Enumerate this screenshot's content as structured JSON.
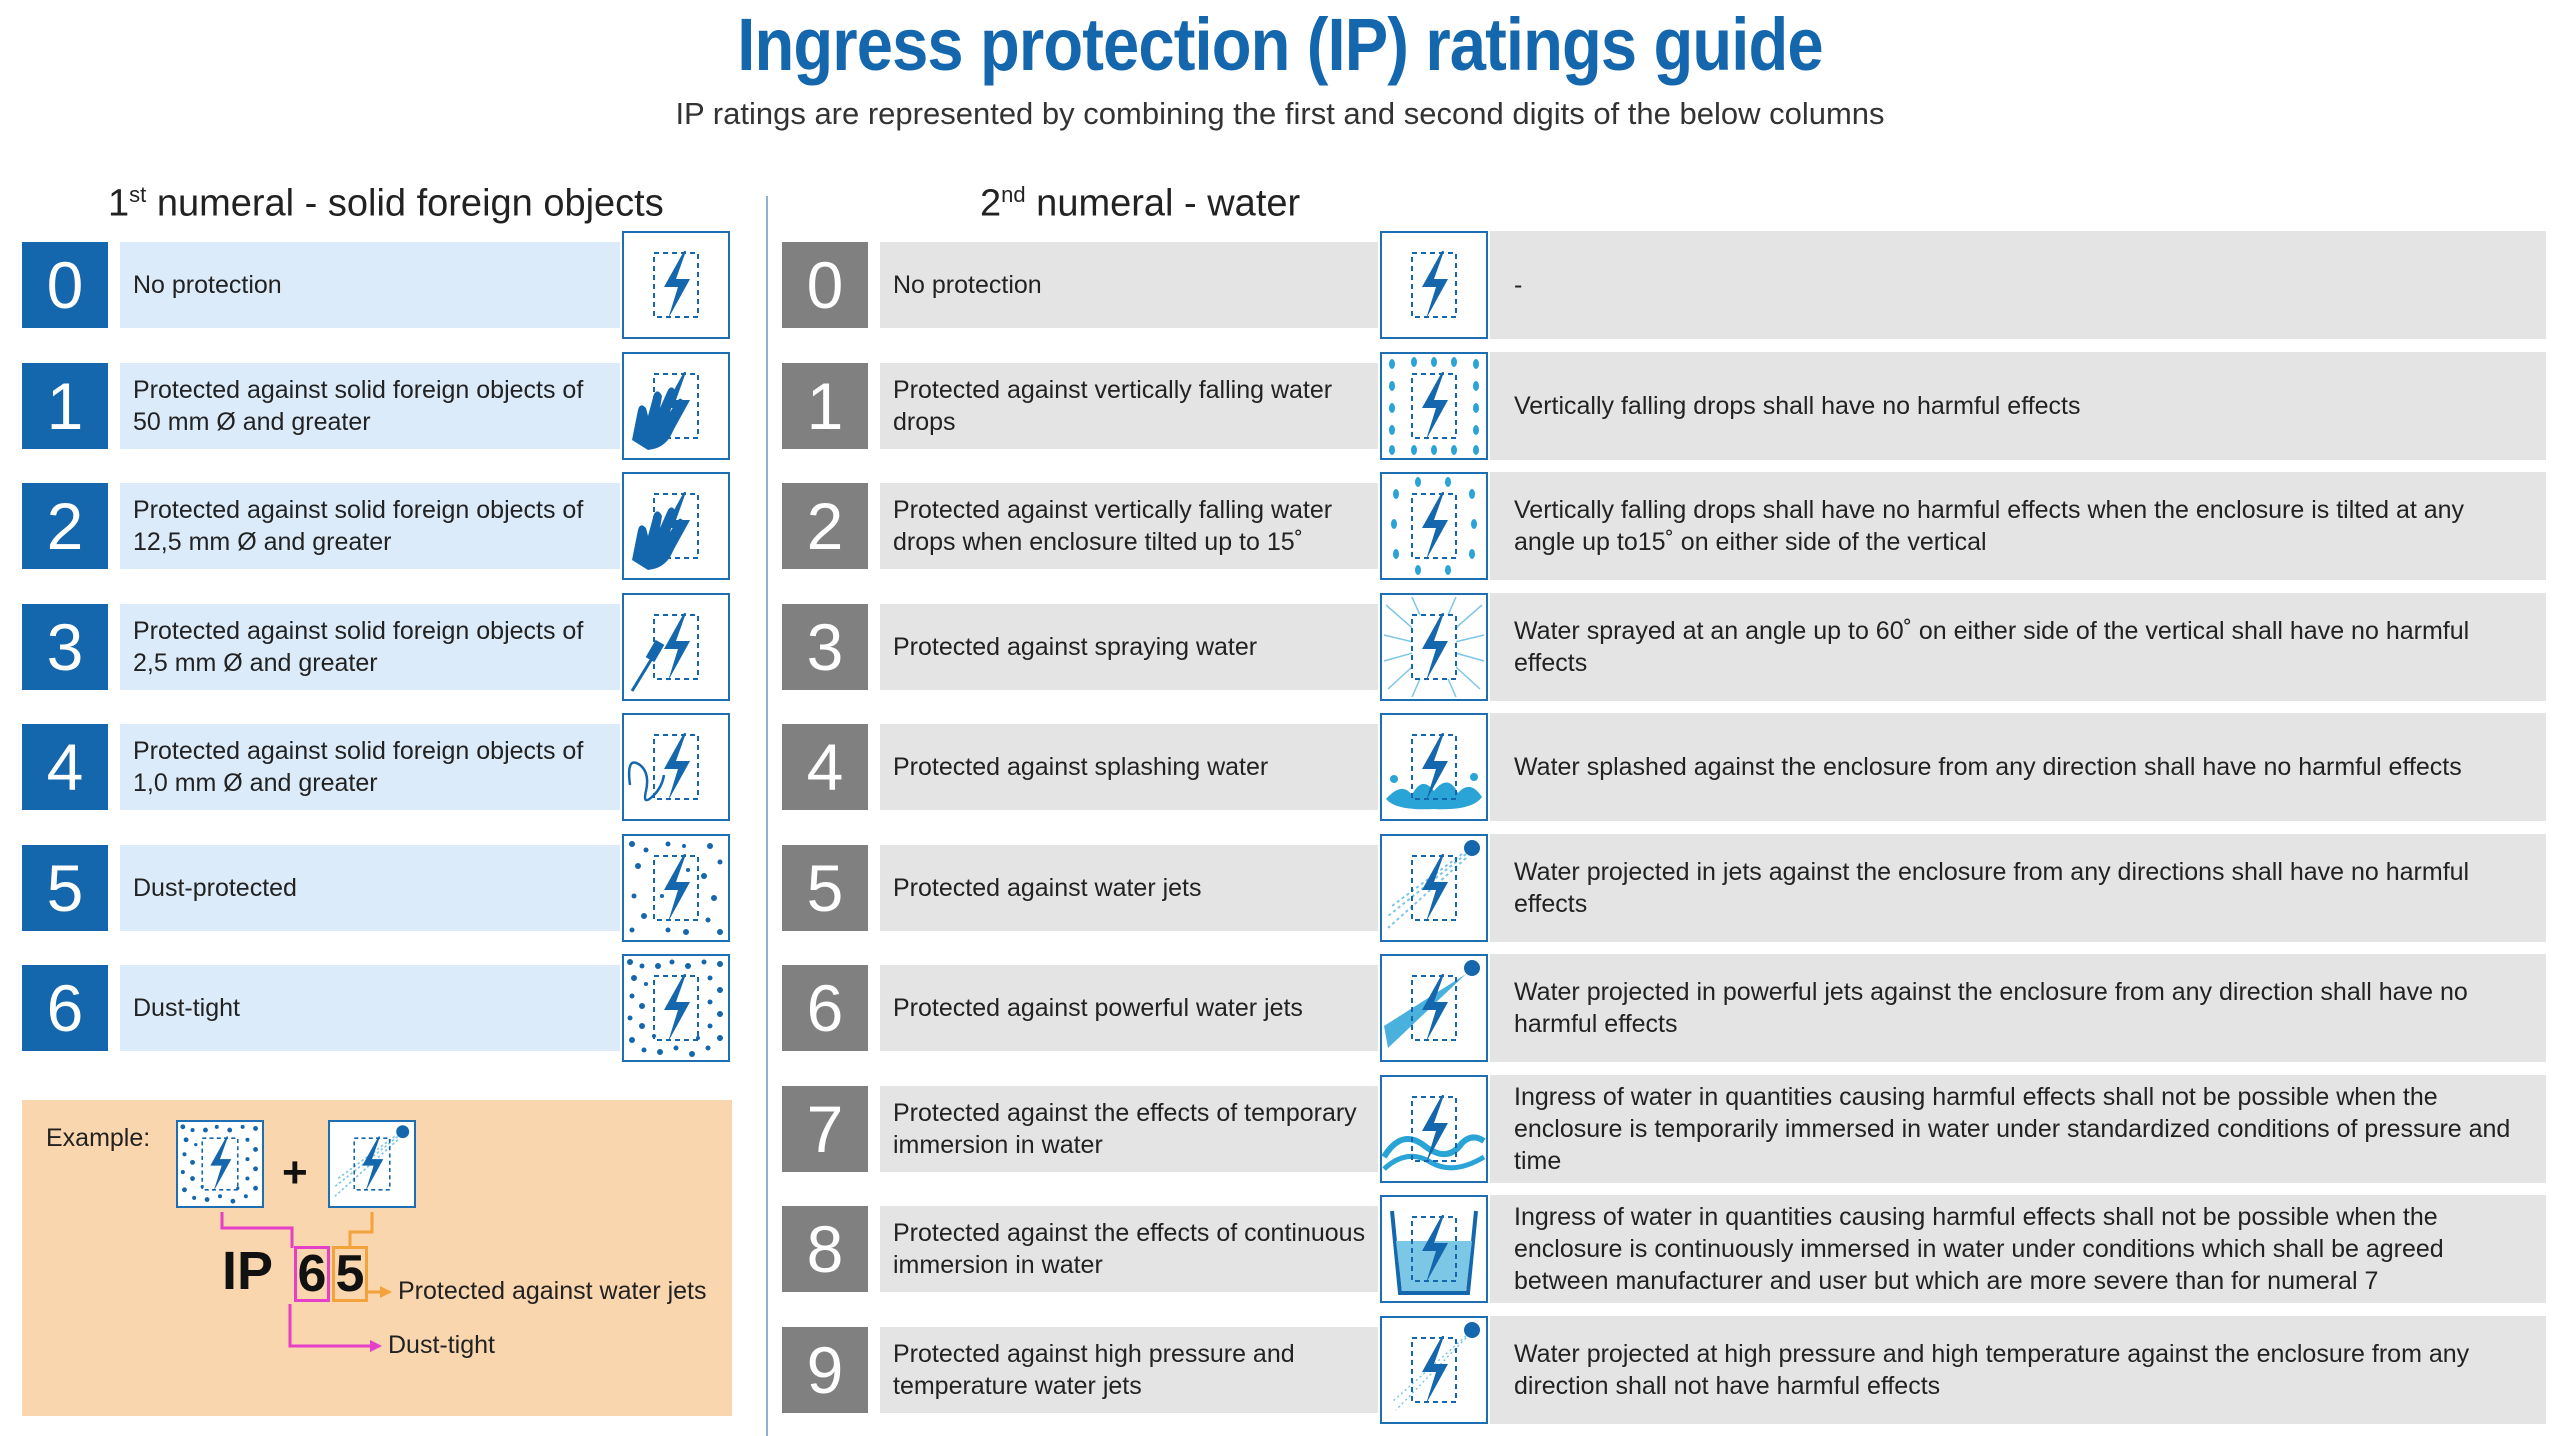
{
  "header": {
    "title": "Ingress protection (IP) ratings guide",
    "subtitle": "IP ratings are represented by combining the first and second digits of the below columns"
  },
  "left_column": {
    "heading_prefix": "1",
    "heading_sup": "st",
    "heading_text": " numeral - solid foreign objects",
    "rows": [
      {
        "numeral": "0",
        "description": "No protection"
      },
      {
        "numeral": "1",
        "description": "Protected against solid foreign objects of 50 mm Ø and greater"
      },
      {
        "numeral": "2",
        "description": "Protected against solid foreign objects of 12,5 mm Ø and greater"
      },
      {
        "numeral": "3",
        "description": "Protected against solid foreign objects of 2,5 mm Ø and greater"
      },
      {
        "numeral": "4",
        "description": "Protected against solid foreign objects of 1,0 mm Ø and greater"
      },
      {
        "numeral": "5",
        "description": "Dust-protected"
      },
      {
        "numeral": "6",
        "description": "Dust-tight"
      }
    ]
  },
  "right_column": {
    "heading_prefix": "2",
    "heading_sup": "nd",
    "heading_text": " numeral - water",
    "rows": [
      {
        "numeral": "0",
        "description": "No protection",
        "effect": "-"
      },
      {
        "numeral": "1",
        "description": "Protected against vertically falling water drops",
        "effect": "Vertically falling drops shall have no harmful effects"
      },
      {
        "numeral": "2",
        "description": "Protected against vertically falling water drops when enclosure tilted up to 15˚",
        "effect": "Vertically falling drops shall have no harmful effects when the enclosure is tilted at any angle up to15˚ on either side of the vertical"
      },
      {
        "numeral": "3",
        "description": "Protected against spraying water",
        "effect": "Water sprayed at an angle up to 60˚ on either side of the vertical shall have no harmful effects"
      },
      {
        "numeral": "4",
        "description": "Protected against splashing water",
        "effect": "Water splashed against the enclosure from any direction shall have no harmful effects"
      },
      {
        "numeral": "5",
        "description": "Protected against water jets",
        "effect": "Water projected in jets against the enclosure from any directions shall have no harmful effects"
      },
      {
        "numeral": "6",
        "description": "Protected against powerful water jets",
        "effect": "Water projected in powerful jets against the enclosure from any direction shall have no harmful effects"
      },
      {
        "numeral": "7",
        "description": "Protected against the effects of temporary immersion in water",
        "effect": "Ingress of water in quantities causing harmful effects shall not be possible when the enclosure is temporarily immersed in water under standardized conditions of pressure and time"
      },
      {
        "numeral": "8",
        "description": "Protected against the effects of continuous immersion in water",
        "effect": "Ingress of water in quantities causing harmful effects shall not be possible when the enclosure is continuously immersed in water under conditions which shall be agreed between manufacturer and user but which are more severe than for numeral 7"
      },
      {
        "numeral": "9",
        "description": "Protected against high pressure and temperature water jets",
        "effect": "Water projected at high pressure and high temperature against the enclosure from any direction shall not have harmful effects"
      }
    ]
  },
  "example": {
    "label": "Example:",
    "plus": "+",
    "ip_prefix": "IP",
    "first_digit": "6",
    "second_digit": "5",
    "second_meaning": "Protected against water jets",
    "first_meaning": "Dust-tight"
  },
  "colors": {
    "brand_blue": "#1466ad",
    "light_blue": "#dcebf9",
    "grey_numeral": "#808080",
    "light_grey": "#e4e4e4",
    "example_bg": "#f9d6ae",
    "first_digit_line": "#e540c7",
    "second_digit_line": "#f2a33b"
  }
}
